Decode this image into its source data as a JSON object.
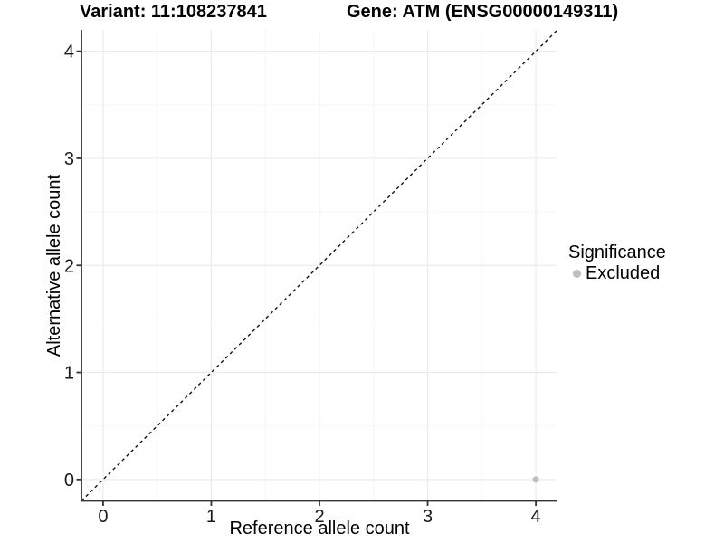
{
  "titles": {
    "left": "Variant: 11:108237841",
    "right": "Gene: ATM (ENSG00000149311)"
  },
  "legend": {
    "title": "Significance",
    "items": [
      {
        "label": "Excluded",
        "color": "#bebebe"
      }
    ]
  },
  "chart_data": {
    "type": "scatter",
    "title": "Variant: 11:108237841   Gene: ATM (ENSG00000149311)",
    "xlabel": "Reference allele count",
    "ylabel": "Alternative allele count",
    "xlim": [
      -0.2,
      4.2
    ],
    "ylim": [
      -0.2,
      4.2
    ],
    "xticks": [
      0,
      1,
      2,
      3,
      4
    ],
    "yticks": [
      0,
      1,
      2,
      3,
      4
    ],
    "grid": "major+minor",
    "legend_position": "right",
    "reference_line": {
      "equation": "y = x",
      "style": "dashed",
      "color": "#111111"
    },
    "series": [
      {
        "name": "Excluded",
        "color": "#bebebe",
        "points": [
          {
            "x": 4,
            "y": 0
          }
        ]
      }
    ]
  },
  "colors": {
    "background": "#ffffff",
    "grid_major": "#ebebeb",
    "grid_minor": "#f5f5f5",
    "axis_line": "#333333",
    "tick_text": "#1a1a1a",
    "point": "#bebebe"
  }
}
